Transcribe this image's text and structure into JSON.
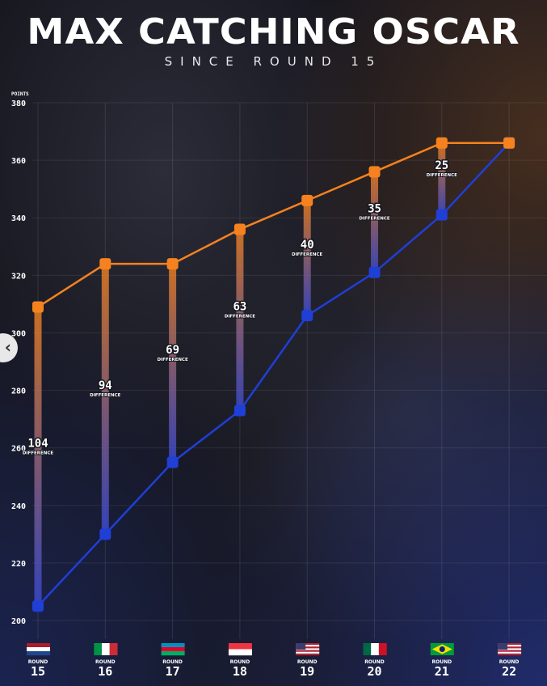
{
  "title": "MAX CATCHING OSCAR",
  "subtitle": "SINCE ROUND 15",
  "chart_data": {
    "type": "line",
    "ylabel": "POINTS",
    "ylim": [
      200,
      380
    ],
    "yticks": [
      200,
      220,
      240,
      260,
      280,
      300,
      320,
      340,
      360,
      380
    ],
    "grid": true,
    "categories": [
      "15",
      "16",
      "17",
      "18",
      "19",
      "20",
      "21",
      "22"
    ],
    "category_prefix": "ROUND",
    "flags": [
      "netherlands",
      "italy",
      "azerbaijan",
      "singapore",
      "usa",
      "mexico",
      "brazil",
      "usa"
    ],
    "series": [
      {
        "values": [
          309,
          324,
          324,
          336,
          346,
          356,
          366,
          366
        ],
        "color": "#f5821f"
      },
      {
        "values": [
          205,
          230,
          255,
          273,
          306,
          321,
          341,
          366
        ],
        "color": "#1f3fd6"
      }
    ],
    "differences": [
      "104",
      "94",
      "69",
      "63",
      "40",
      "35",
      "25"
    ],
    "difference_label": "DIFFERENCE"
  }
}
